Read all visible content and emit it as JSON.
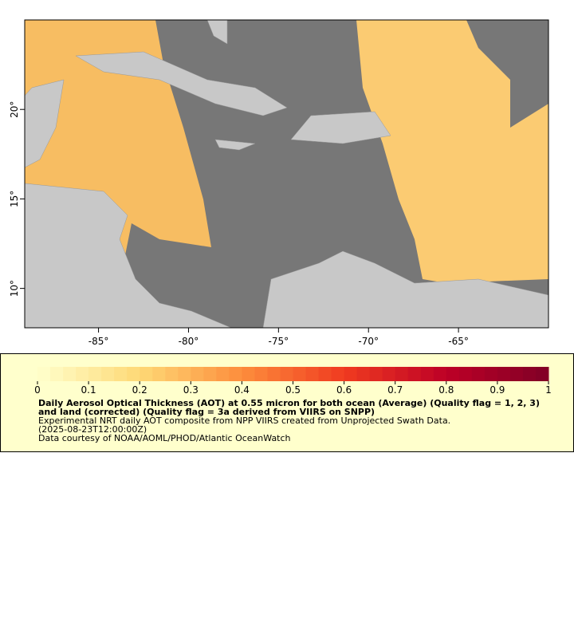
{
  "map": {
    "lon_range": [
      -89.1,
      -60
    ],
    "lat_range": [
      7.8,
      25
    ],
    "lon_ticks": [
      {
        "value": -85,
        "label": "-85°"
      },
      {
        "value": -80,
        "label": "-80°"
      },
      {
        "value": -75,
        "label": "-75°"
      },
      {
        "value": -70,
        "label": "-70°"
      },
      {
        "value": -65,
        "label": "-65°"
      }
    ],
    "lat_ticks": [
      {
        "value": 10,
        "label": "10°"
      },
      {
        "value": 15,
        "label": "15°"
      },
      {
        "value": 20,
        "label": "20°"
      }
    ]
  },
  "colorbar": {
    "range": [
      0,
      1
    ],
    "ticks": [
      0,
      0.1,
      0.2,
      0.3,
      0.4,
      0.5,
      0.6,
      0.7,
      0.8,
      0.9,
      1
    ]
  },
  "caption": {
    "title": "Daily Aerosol Optical Thickness (AOT) at 0.55 micron for both ocean (Average) (Quality flag = 1, 2, 3) and land (corrected) (Quality flag = 3a derived from VIIRS on SNPP)",
    "lines": [
      "Experimental NRT daily AOT composite from NPP VIIRS created from Unprojected Swath Data.",
      "(2025-08-23T12:00:00Z)",
      "Data courtesy of NOAA/AOML/PHOD/Atlantic OceanWatch"
    ]
  }
}
